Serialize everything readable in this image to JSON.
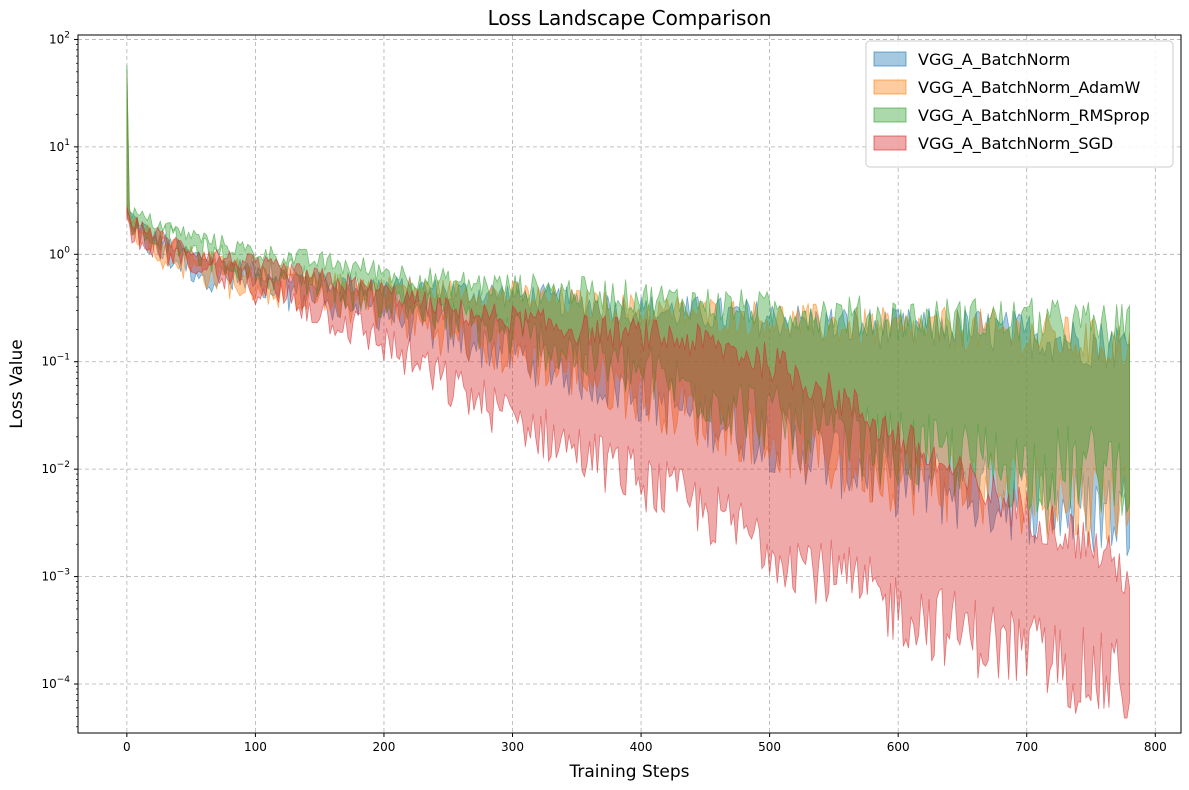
{
  "chart_data": {
    "type": "area",
    "title": "Loss Landscape Comparison",
    "xlabel": "Training Steps",
    "ylabel": "Loss Value",
    "xlim": [
      -38,
      820
    ],
    "ylim": [
      3.5e-05,
      110
    ],
    "yscale": "log",
    "grid": true,
    "legend_position": "top-right",
    "x_ticks": [
      0,
      100,
      200,
      300,
      400,
      500,
      600,
      700,
      800
    ],
    "y_ticks": [
      {
        "value": 0.0001,
        "base": "10",
        "exp": "−4"
      },
      {
        "value": 0.001,
        "base": "10",
        "exp": "−3"
      },
      {
        "value": 0.01,
        "base": "10",
        "exp": "−2"
      },
      {
        "value": 0.1,
        "base": "10",
        "exp": "−1"
      },
      {
        "value": 1,
        "base": "10",
        "exp": "0"
      },
      {
        "value": 10,
        "base": "10",
        "exp": "1"
      },
      {
        "value": 100,
        "base": "10",
        "exp": "2"
      }
    ],
    "series": [
      {
        "name": "VGG_A_BatchNorm",
        "color": "#1f77b4",
        "x": [
          0,
          1,
          5,
          20,
          50,
          80,
          100,
          150,
          200,
          250,
          300,
          350,
          400,
          450,
          500,
          550,
          600,
          650,
          700,
          750,
          780
        ],
        "upper": [
          55,
          2.6,
          2.2,
          1.5,
          1.0,
          0.8,
          0.7,
          0.55,
          0.5,
          0.45,
          0.42,
          0.35,
          0.3,
          0.28,
          0.25,
          0.22,
          0.2,
          0.2,
          0.18,
          0.15,
          0.14
        ],
        "lower": [
          2.3,
          2.1,
          1.9,
          1.1,
          0.75,
          0.55,
          0.5,
          0.4,
          0.3,
          0.18,
          0.12,
          0.08,
          0.05,
          0.03,
          0.02,
          0.012,
          0.008,
          0.006,
          0.005,
          0.004,
          0.004
        ]
      },
      {
        "name": "VGG_A_BatchNorm_AdamW",
        "color": "#ff7f0e",
        "x": [
          0,
          1,
          5,
          20,
          50,
          80,
          100,
          150,
          200,
          250,
          300,
          350,
          400,
          450,
          500,
          550,
          600,
          650,
          700,
          750,
          780
        ],
        "upper": [
          50,
          2.6,
          2.2,
          1.5,
          1.0,
          0.8,
          0.7,
          0.55,
          0.5,
          0.45,
          0.42,
          0.35,
          0.3,
          0.28,
          0.25,
          0.22,
          0.2,
          0.2,
          0.18,
          0.15,
          0.14
        ],
        "lower": [
          2.3,
          2.1,
          1.9,
          1.1,
          0.75,
          0.55,
          0.5,
          0.4,
          0.3,
          0.18,
          0.12,
          0.08,
          0.05,
          0.03,
          0.02,
          0.012,
          0.009,
          0.007,
          0.006,
          0.005,
          0.005
        ]
      },
      {
        "name": "VGG_A_BatchNorm_RMSprop",
        "color": "#2ca02c",
        "x": [
          0,
          1,
          5,
          20,
          50,
          80,
          100,
          150,
          200,
          250,
          300,
          350,
          400,
          450,
          500,
          550,
          600,
          650,
          700,
          750,
          780
        ],
        "upper": [
          58,
          2.8,
          2.4,
          2.0,
          1.5,
          1.2,
          1.05,
          0.85,
          0.7,
          0.55,
          0.5,
          0.45,
          0.4,
          0.35,
          0.3,
          0.28,
          0.25,
          0.25,
          0.24,
          0.22,
          0.2
        ],
        "lower": [
          2.4,
          2.3,
          2.2,
          1.6,
          1.1,
          0.85,
          0.75,
          0.55,
          0.4,
          0.25,
          0.18,
          0.12,
          0.08,
          0.05,
          0.03,
          0.02,
          0.015,
          0.012,
          0.01,
          0.01,
          0.01
        ]
      },
      {
        "name": "VGG_A_BatchNorm_SGD",
        "color": "#d62728",
        "x": [
          0,
          1,
          5,
          20,
          50,
          80,
          100,
          150,
          200,
          250,
          300,
          350,
          400,
          450,
          500,
          550,
          600,
          650,
          700,
          750,
          780
        ],
        "upper": [
          2.8,
          2.3,
          2.0,
          1.6,
          1.1,
          0.9,
          0.8,
          0.6,
          0.45,
          0.3,
          0.25,
          0.2,
          0.18,
          0.15,
          0.1,
          0.05,
          0.02,
          0.008,
          0.004,
          0.002,
          0.001
        ],
        "lower": [
          2.2,
          2.0,
          1.7,
          1.2,
          0.8,
          0.6,
          0.5,
          0.3,
          0.15,
          0.06,
          0.03,
          0.015,
          0.008,
          0.004,
          0.002,
          0.001,
          0.0005,
          0.0003,
          0.0002,
          0.00012,
          0.0001
        ]
      }
    ]
  }
}
